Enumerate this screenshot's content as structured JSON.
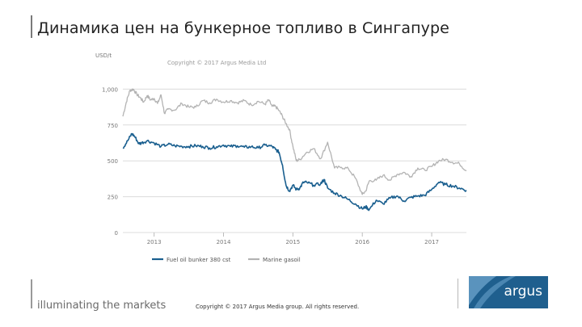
{
  "slide": {
    "title": "Динамика цен на бункерное топливо в Сингапуре",
    "tagline": "illuminating the markets",
    "footer_copyright": "Copyright © 2017 Argus Media group. All rights reserved.",
    "logo_text": "argus"
  },
  "colors": {
    "fuel_oil": "#1a5f8f",
    "gasoil": "#b3b3b3",
    "grid": "#dcdcdc",
    "logo_bg": "#1f5f8e"
  },
  "chart_data": {
    "type": "line",
    "title": "",
    "watermark": "Copyright © 2017 Argus Media Ltd",
    "ylabel": "USD/t",
    "xlabel": "",
    "ylim": [
      0,
      1250
    ],
    "xlim": [
      2012.55,
      2017.5
    ],
    "yticks": [
      0,
      250,
      500,
      750,
      1000
    ],
    "ytick_labels": [
      "0",
      "250",
      "500",
      "750",
      "1,000"
    ],
    "xticks": [
      2013,
      2014,
      2015,
      2016,
      2017
    ],
    "xtick_labels": [
      "2013",
      "2014",
      "2015",
      "2016",
      "2017"
    ],
    "grid": true,
    "legend_position": "bottom-left",
    "series": [
      {
        "name": "Fuel oil bunker 380 cst",
        "x": [
          2012.55,
          2012.62,
          2012.68,
          2012.72,
          2012.78,
          2012.82,
          2012.9,
          2013.0,
          2013.1,
          2013.2,
          2013.3,
          2013.4,
          2013.5,
          2013.6,
          2013.7,
          2013.8,
          2013.9,
          2014.0,
          2014.1,
          2014.2,
          2014.3,
          2014.4,
          2014.5,
          2014.6,
          2014.7,
          2014.75,
          2014.8,
          2014.85,
          2014.9,
          2014.95,
          2015.0,
          2015.05,
          2015.1,
          2015.15,
          2015.2,
          2015.3,
          2015.4,
          2015.45,
          2015.5,
          2015.6,
          2015.7,
          2015.8,
          2015.9,
          2016.0,
          2016.05,
          2016.1,
          2016.2,
          2016.3,
          2016.4,
          2016.5,
          2016.6,
          2016.7,
          2016.8,
          2016.9,
          2017.0,
          2017.1,
          2017.2,
          2017.3,
          2017.4,
          2017.5
        ],
        "values": [
          590,
          640,
          690,
          670,
          620,
          625,
          640,
          625,
          600,
          615,
          605,
          600,
          600,
          605,
          600,
          590,
          598,
          610,
          600,
          605,
          595,
          598,
          590,
          610,
          600,
          580,
          560,
          470,
          330,
          290,
          330,
          300,
          310,
          350,
          350,
          330,
          340,
          370,
          310,
          275,
          255,
          230,
          200,
          165,
          180,
          160,
          225,
          200,
          240,
          255,
          220,
          245,
          255,
          260,
          300,
          350,
          335,
          325,
          310,
          295
        ]
      },
      {
        "name": "Marine gasoil",
        "x": [
          2012.55,
          2012.6,
          2012.65,
          2012.7,
          2012.75,
          2012.8,
          2012.85,
          2012.9,
          2012.95,
          2013.0,
          2013.05,
          2013.1,
          2013.15,
          2013.2,
          2013.3,
          2013.4,
          2013.5,
          2013.6,
          2013.7,
          2013.8,
          2013.9,
          2014.0,
          2014.1,
          2014.2,
          2014.3,
          2014.4,
          2014.5,
          2014.6,
          2014.65,
          2014.7,
          2014.75,
          2014.8,
          2014.85,
          2014.9,
          2014.95,
          2015.0,
          2015.05,
          2015.1,
          2015.2,
          2015.3,
          2015.4,
          2015.5,
          2015.6,
          2015.7,
          2015.8,
          2015.9,
          2016.0,
          2016.05,
          2016.1,
          2016.2,
          2016.3,
          2016.4,
          2016.5,
          2016.6,
          2016.7,
          2016.8,
          2016.9,
          2017.0,
          2017.1,
          2017.2,
          2017.3,
          2017.4,
          2017.5
        ],
        "values": [
          810,
          910,
          990,
          1000,
          965,
          940,
          910,
          955,
          925,
          935,
          900,
          960,
          830,
          860,
          855,
          900,
          875,
          875,
          920,
          905,
          930,
          910,
          920,
          905,
          920,
          890,
          915,
          895,
          925,
          880,
          880,
          850,
          810,
          760,
          720,
          600,
          500,
          510,
          560,
          585,
          515,
          630,
          450,
          455,
          445,
          380,
          265,
          290,
          360,
          365,
          400,
          365,
          405,
          420,
          390,
          450,
          435,
          460,
          500,
          510,
          490,
          480,
          430
        ]
      }
    ]
  }
}
